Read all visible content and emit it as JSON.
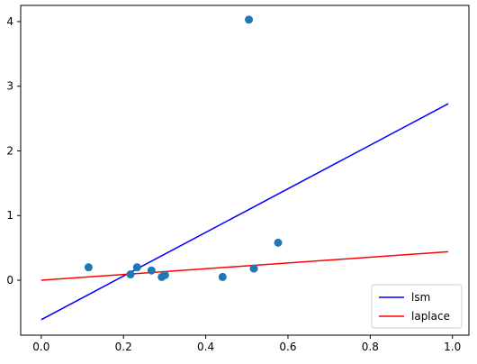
{
  "chart_data": {
    "type": "scatter",
    "title": "",
    "xlabel": "",
    "ylabel": "",
    "xlim": [
      -0.05,
      1.04
    ],
    "ylim": [
      -0.85,
      4.25
    ],
    "xticks": [
      0.0,
      0.2,
      0.4,
      0.6,
      0.8,
      1.0
    ],
    "xtick_labels": [
      "0.0",
      "0.2",
      "0.4",
      "0.6",
      "0.8",
      "1.0"
    ],
    "yticks": [
      0,
      1,
      2,
      3,
      4
    ],
    "ytick_labels": [
      "0",
      "1",
      "2",
      "3",
      "4"
    ],
    "grid": false,
    "legend_position": "bottom-right",
    "points": {
      "color": "#1f77b4",
      "x": [
        0.115,
        0.217,
        0.233,
        0.268,
        0.293,
        0.301,
        0.441,
        0.505,
        0.517,
        0.576
      ],
      "y": [
        0.2,
        0.09,
        0.2,
        0.15,
        0.05,
        0.08,
        0.05,
        4.03,
        0.18,
        0.58
      ]
    },
    "series": [
      {
        "name": "lsm",
        "type": "line",
        "color": "#0000ff",
        "x": [
          0.0,
          0.99
        ],
        "y": [
          -0.61,
          2.73
        ]
      },
      {
        "name": "laplace",
        "type": "line",
        "color": "#ff0000",
        "x": [
          0.0,
          0.99
        ],
        "y": [
          0.0,
          0.44
        ]
      }
    ]
  }
}
